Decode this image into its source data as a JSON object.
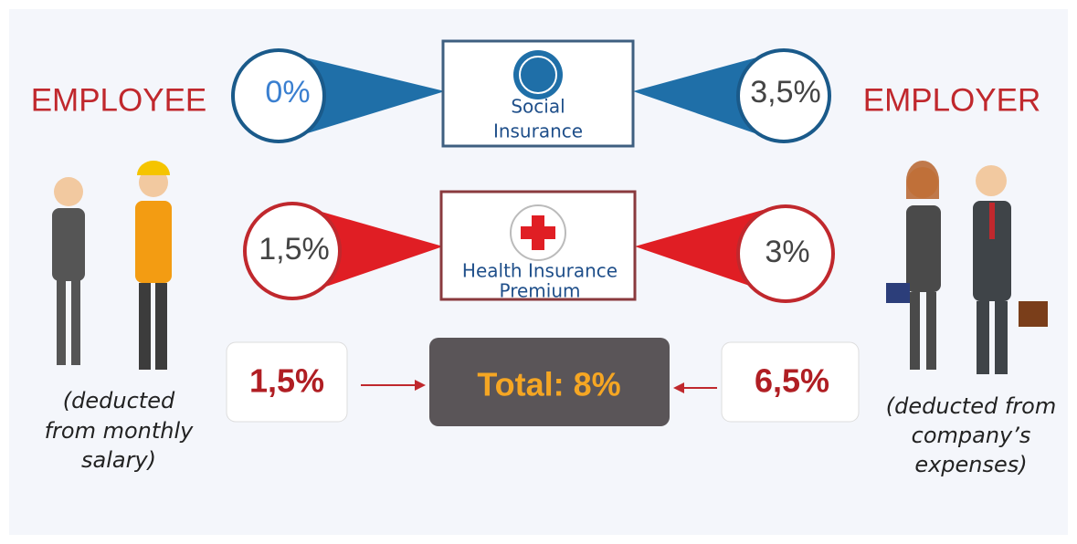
{
  "employee": {
    "label": "EMPLOYEE",
    "note_lines": [
      "(deducted",
      "from monthly",
      "salary)"
    ]
  },
  "employer": {
    "label": "EMPLOYER",
    "note_lines": [
      "(deducted from",
      "company’s",
      "expenses)"
    ]
  },
  "social_insurance": {
    "title_lines": [
      "Social",
      "Insurance"
    ],
    "employee_rate": "0%",
    "employer_rate": "3,5%"
  },
  "health_insurance": {
    "title_lines": [
      "Health Insurance",
      "Premium"
    ],
    "employee_rate": "1,5%",
    "employer_rate": "3%"
  },
  "totals": {
    "employee": "1,5%",
    "total": "Total: 8%",
    "employer": "6,5%"
  }
}
